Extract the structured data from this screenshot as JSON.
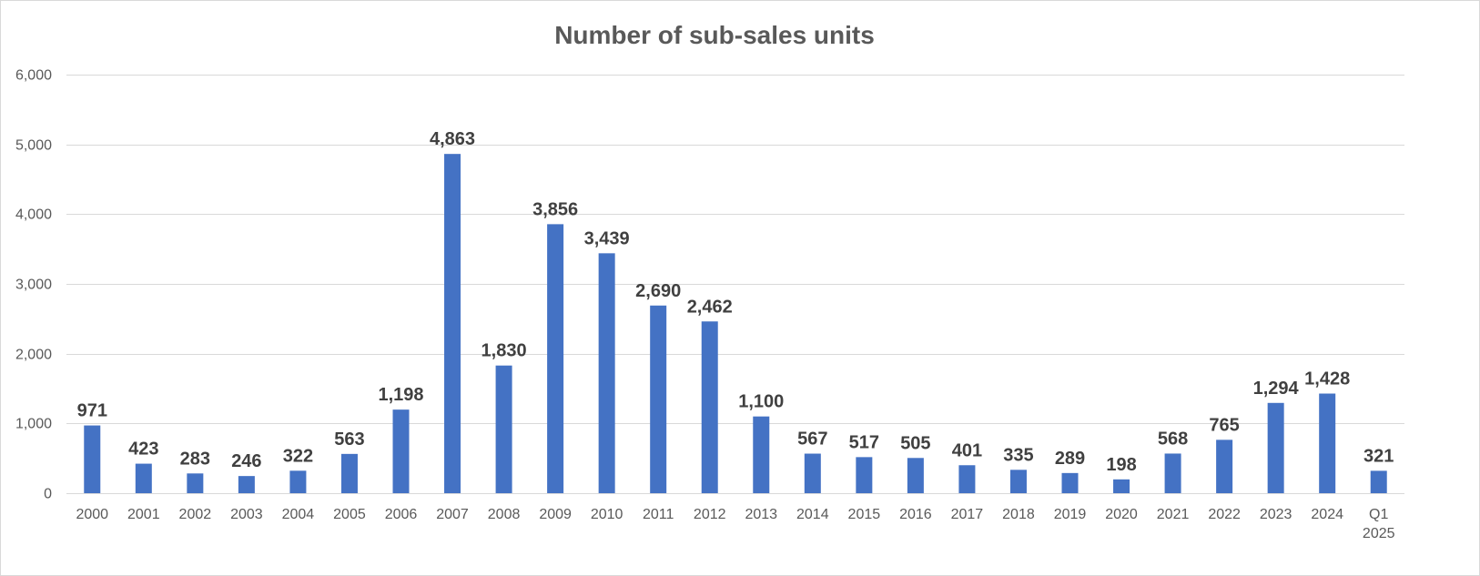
{
  "chart_data": {
    "type": "bar",
    "title": "Number of sub-sales units",
    "xlabel": "",
    "ylabel": "",
    "ylim": [
      0,
      6000
    ],
    "yticks": [
      0,
      1000,
      2000,
      3000,
      4000,
      5000,
      6000
    ],
    "ytick_labels": [
      "0",
      "1,000",
      "2,000",
      "3,000",
      "4,000",
      "5,000",
      "6,000"
    ],
    "grid": true,
    "legend": "none",
    "bar_color": "#4472C4",
    "categories": [
      [
        "2000"
      ],
      [
        "2001"
      ],
      [
        "2002"
      ],
      [
        "2003"
      ],
      [
        "2004"
      ],
      [
        "2005"
      ],
      [
        "2006"
      ],
      [
        "2007"
      ],
      [
        "2008"
      ],
      [
        "2009"
      ],
      [
        "2010"
      ],
      [
        "2011"
      ],
      [
        "2012"
      ],
      [
        "2013"
      ],
      [
        "2014"
      ],
      [
        "2015"
      ],
      [
        "2016"
      ],
      [
        "2017"
      ],
      [
        "2018"
      ],
      [
        "2019"
      ],
      [
        "2020"
      ],
      [
        "2021"
      ],
      [
        "2022"
      ],
      [
        "2023"
      ],
      [
        "2024"
      ],
      [
        "Q1",
        "2025"
      ]
    ],
    "values": [
      971,
      423,
      283,
      246,
      322,
      563,
      1198,
      4863,
      1830,
      3856,
      3439,
      2690,
      2462,
      1100,
      567,
      517,
      505,
      401,
      335,
      289,
      198,
      568,
      765,
      1294,
      1428,
      321
    ],
    "data_labels": [
      "971",
      "423",
      "283",
      "246",
      "322",
      "563",
      "1,198",
      "4,863",
      "1,830",
      "3,856",
      "3,439",
      "2,690",
      "2,462",
      "1,100",
      "567",
      "517",
      "505",
      "401",
      "335",
      "289",
      "198",
      "568",
      "765",
      "1,294",
      "1,428",
      "321"
    ]
  }
}
